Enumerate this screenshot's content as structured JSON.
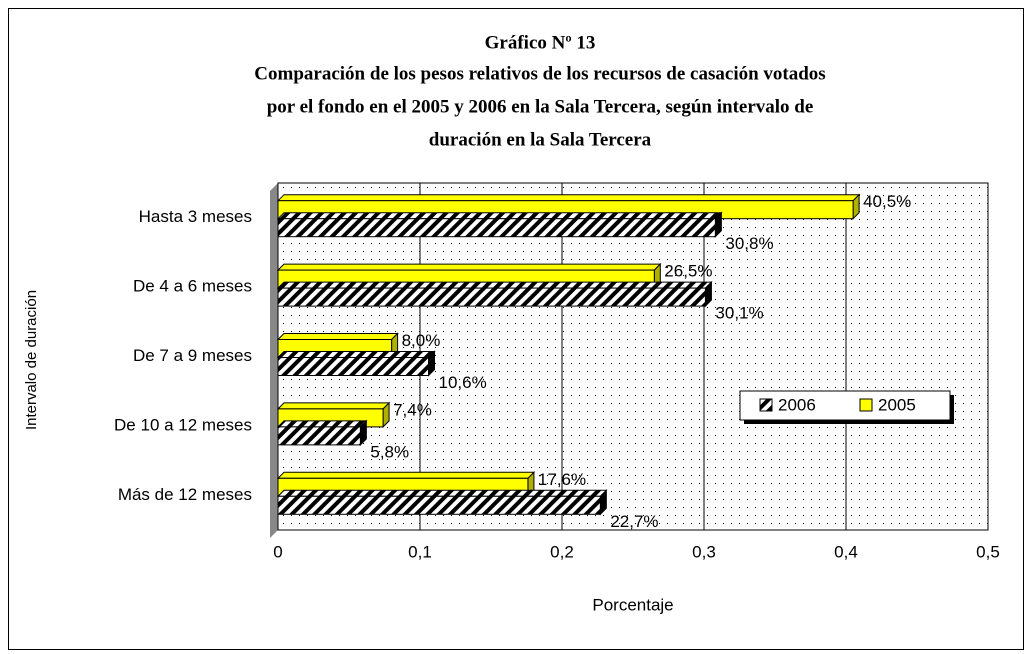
{
  "chart_data": {
    "type": "bar",
    "orientation": "horizontal",
    "title": "Gráfico Nº 13",
    "subtitle": [
      "Comparación de los pesos relativos de los recursos de casación votados",
      "por el fondo en el 2005 y 2006 en la Sala Tercera, según intervalo de",
      "duración en la Sala Tercera"
    ],
    "x_label": "Porcentaje",
    "y_label": "Intervalo de duración",
    "categories": [
      "Hasta 3 meses",
      "De 4 a 6 meses",
      "De 7 a 9 meses",
      "De 10 a 12 meses",
      "Más de 12 meses"
    ],
    "series": [
      {
        "name": "2006",
        "color": "#000000",
        "pattern": "diagonal-hatch",
        "values": [
          0.308,
          0.301,
          0.106,
          0.058,
          0.227
        ],
        "value_labels": [
          "30,8%",
          "30,1%",
          "10,6%",
          "5,8%",
          "22,7%"
        ]
      },
      {
        "name": "2005",
        "color": "#ffff00",
        "values": [
          0.405,
          0.265,
          0.08,
          0.074,
          0.176
        ],
        "value_labels": [
          "40,5%",
          "26,5%",
          "8,0%",
          "7,4%",
          "17,6%"
        ]
      }
    ],
    "xlim": [
      0,
      0.5
    ],
    "xticks": [
      0,
      {
        "value": 0.1,
        "label": "0,1"
      },
      {
        "value": 0.2,
        "label": "0,2"
      },
      {
        "value": 0.3,
        "label": "0,3"
      },
      {
        "value": 0.4,
        "label": "0,4"
      },
      {
        "value": 0.5,
        "label": "0,5"
      }
    ],
    "grid": true,
    "legend": "right"
  }
}
